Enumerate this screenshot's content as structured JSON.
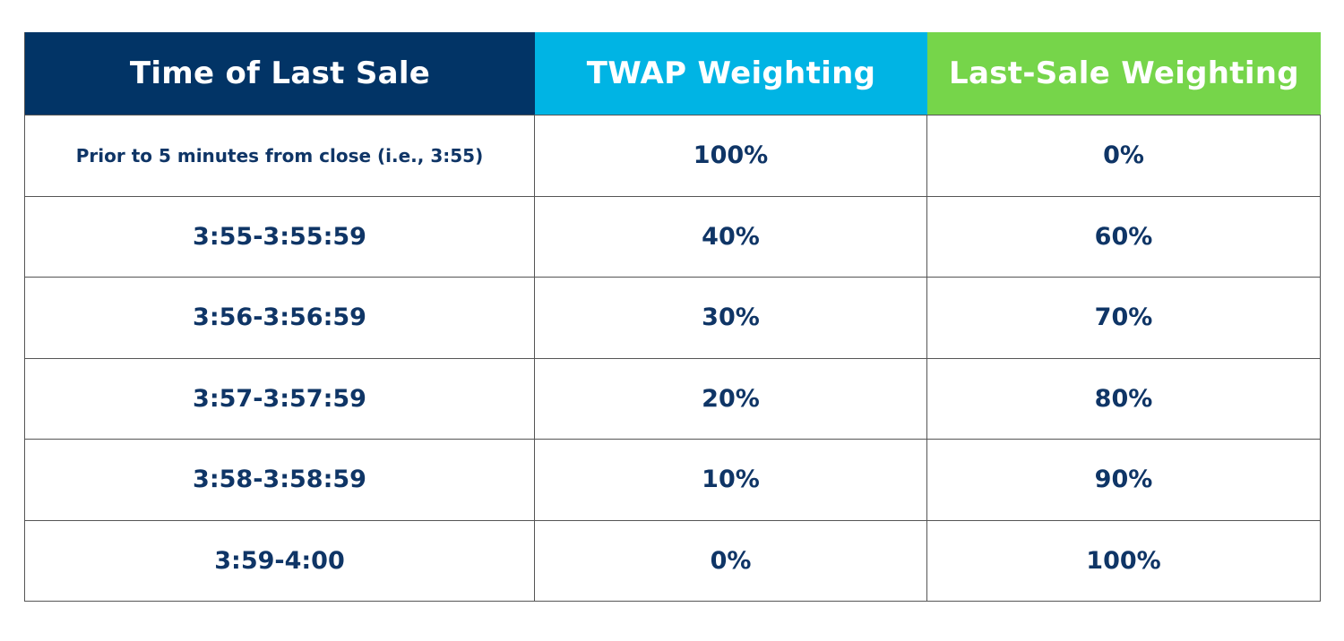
{
  "colors": {
    "header_col1": "#023466",
    "header_col2": "#00b4e4",
    "header_col3": "#76d54a",
    "body_text": "#0f3566",
    "border": "#555555"
  },
  "chart_data": {
    "type": "table",
    "columns": [
      "Time of Last Sale",
      "TWAP Weighting",
      "Last-Sale Weighting"
    ],
    "rows": [
      [
        "Prior to 5 minutes from close (i.e., 3:55)",
        "100%",
        "0%"
      ],
      [
        "3:55-3:55:59",
        "40%",
        "60%"
      ],
      [
        "3:56-3:56:59",
        "30%",
        "70%"
      ],
      [
        "3:57-3:57:59",
        "20%",
        "80%"
      ],
      [
        "3:58-3:58:59",
        "10%",
        "90%"
      ],
      [
        "3:59-4:00",
        "0%",
        "100%"
      ]
    ]
  }
}
